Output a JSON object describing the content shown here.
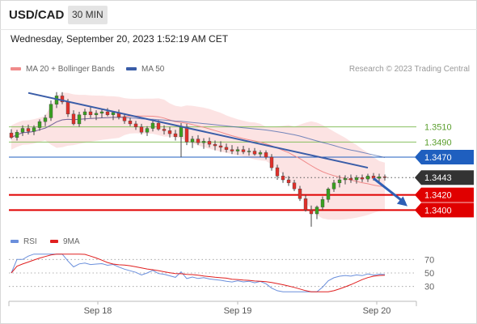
{
  "header": {
    "symbol": "USD/CAD",
    "timeframe": "30 MIN"
  },
  "datetime": "Wednesday, September 20, 2023 1:52:19 AM CET",
  "attribution": "Research © 2023 Trading Central",
  "colors": {
    "up": "#3aa020",
    "down": "#e0302a",
    "ma50": "#3a5da8",
    "bollinger_fill": "#fbd9d9",
    "bollinger_line": "#f08a8a",
    "resistance": "#88c060",
    "support": "#e00000",
    "pivot": "#1f5fbf",
    "current": "#333333",
    "rsi": "#6a8fdc",
    "rsi_ma": "#e02020"
  },
  "chart_data": [
    {
      "type": "line",
      "title": "",
      "legend": [
        {
          "name": "MA 20 + Bollinger Bands",
          "color": "#f08a8a"
        },
        {
          "name": "MA 50",
          "color": "#3a5da8"
        }
      ],
      "x_tick_labels": [
        "Sep 18",
        "Sep 19",
        "Sep 20"
      ],
      "y_range": [
        1.3365,
        1.3575
      ],
      "levels": [
        {
          "label": "1.3510",
          "value": 1.351,
          "role": "resistance",
          "color": "#88c060"
        },
        {
          "label": "1.3490",
          "value": 1.349,
          "role": "resistance",
          "color": "#88c060"
        },
        {
          "label": "1.3470",
          "value": 1.347,
          "role": "pivot",
          "color": "#1f5fbf"
        },
        {
          "label": "1.3443",
          "value": 1.3443,
          "role": "current",
          "color": "#333333"
        },
        {
          "label": "1.3420",
          "value": 1.342,
          "role": "support",
          "color": "#e00000"
        },
        {
          "label": "1.3400",
          "value": 1.34,
          "role": "support",
          "color": "#e00000"
        }
      ],
      "trendline": {
        "from": [
          3,
          1.3555
        ],
        "to": [
          63,
          1.3456
        ]
      },
      "forecast_arrow": {
        "from": [
          64,
          1.3442
        ],
        "to": [
          70,
          1.3405
        ]
      },
      "candles": [
        [
          1.3502,
          1.3507,
          1.3494,
          1.3496
        ],
        [
          1.3496,
          1.3506,
          1.3492,
          1.3503
        ],
        [
          1.3503,
          1.3512,
          1.3498,
          1.3508
        ],
        [
          1.3508,
          1.3513,
          1.35,
          1.3504
        ],
        [
          1.3504,
          1.3512,
          1.3499,
          1.3509
        ],
        [
          1.3509,
          1.352,
          1.3505,
          1.3517
        ],
        [
          1.3517,
          1.3526,
          1.3511,
          1.3522
        ],
        [
          1.3522,
          1.3545,
          1.3518,
          1.354
        ],
        [
          1.354,
          1.3556,
          1.3535,
          1.3551
        ],
        [
          1.3551,
          1.3556,
          1.354,
          1.3543
        ],
        [
          1.3543,
          1.3547,
          1.3523,
          1.3527
        ],
        [
          1.3527,
          1.3532,
          1.3512,
          1.3514
        ],
        [
          1.3514,
          1.353,
          1.351,
          1.3526
        ],
        [
          1.3526,
          1.3534,
          1.3518,
          1.353
        ],
        [
          1.353,
          1.3536,
          1.3522,
          1.3526
        ],
        [
          1.3526,
          1.3532,
          1.3519,
          1.3528
        ],
        [
          1.3528,
          1.3534,
          1.3522,
          1.353
        ],
        [
          1.353,
          1.3535,
          1.3524,
          1.3526
        ],
        [
          1.3526,
          1.3531,
          1.3519,
          1.3529
        ],
        [
          1.3529,
          1.3533,
          1.352,
          1.3523
        ],
        [
          1.3523,
          1.3528,
          1.3514,
          1.3518
        ],
        [
          1.3518,
          1.3522,
          1.3511,
          1.3514
        ],
        [
          1.3514,
          1.3518,
          1.3506,
          1.351
        ],
        [
          1.351,
          1.3514,
          1.35,
          1.3503
        ],
        [
          1.3503,
          1.3511,
          1.3498,
          1.3508
        ],
        [
          1.3508,
          1.3518,
          1.3504,
          1.3515
        ],
        [
          1.3515,
          1.3519,
          1.3505,
          1.3507
        ],
        [
          1.3507,
          1.3512,
          1.35,
          1.3505
        ],
        [
          1.3505,
          1.351,
          1.3496,
          1.3501
        ],
        [
          1.3501,
          1.3506,
          1.3492,
          1.3497
        ],
        [
          1.3497,
          1.3515,
          1.347,
          1.351
        ],
        [
          1.351,
          1.3514,
          1.3486,
          1.349
        ],
        [
          1.349,
          1.3498,
          1.3482,
          1.3494
        ],
        [
          1.3494,
          1.3499,
          1.3486,
          1.3489
        ],
        [
          1.3489,
          1.3495,
          1.3481,
          1.3491
        ],
        [
          1.3491,
          1.3496,
          1.3483,
          1.3487
        ],
        [
          1.3487,
          1.3492,
          1.3479,
          1.3485
        ],
        [
          1.3485,
          1.3491,
          1.3477,
          1.3483
        ],
        [
          1.3483,
          1.3488,
          1.3476,
          1.348
        ],
        [
          1.348,
          1.3486,
          1.3474,
          1.3478
        ],
        [
          1.3478,
          1.3484,
          1.3473,
          1.348
        ],
        [
          1.348,
          1.3485,
          1.3474,
          1.3477
        ],
        [
          1.3477,
          1.3482,
          1.3472,
          1.3478
        ],
        [
          1.3478,
          1.3482,
          1.3472,
          1.3474
        ],
        [
          1.3474,
          1.3479,
          1.347,
          1.3476
        ],
        [
          1.3476,
          1.3479,
          1.3467,
          1.347
        ],
        [
          1.347,
          1.3474,
          1.3452,
          1.3456
        ],
        [
          1.3456,
          1.346,
          1.344,
          1.3445
        ],
        [
          1.3445,
          1.345,
          1.3436,
          1.344
        ],
        [
          1.344,
          1.3445,
          1.3432,
          1.3436
        ],
        [
          1.3436,
          1.344,
          1.3425,
          1.3428
        ],
        [
          1.3428,
          1.3432,
          1.3412,
          1.3415
        ],
        [
          1.3415,
          1.342,
          1.3398,
          1.34
        ],
        [
          1.34,
          1.3406,
          1.3378,
          1.3395
        ],
        [
          1.3395,
          1.3406,
          1.3388,
          1.3404
        ],
        [
          1.3404,
          1.3418,
          1.34,
          1.3414
        ],
        [
          1.3414,
          1.343,
          1.341,
          1.3428
        ],
        [
          1.3428,
          1.344,
          1.3424,
          1.3436
        ],
        [
          1.3436,
          1.3446,
          1.343,
          1.344
        ],
        [
          1.344,
          1.3446,
          1.3434,
          1.3442
        ],
        [
          1.3442,
          1.3447,
          1.3436,
          1.344
        ],
        [
          1.344,
          1.3446,
          1.3435,
          1.3443
        ],
        [
          1.3443,
          1.3447,
          1.3437,
          1.3441
        ],
        [
          1.3441,
          1.3448,
          1.3437,
          1.3445
        ],
        [
          1.3445,
          1.3449,
          1.3439,
          1.3442
        ],
        [
          1.3442,
          1.3448,
          1.3438,
          1.3444
        ],
        [
          1.3444,
          1.3447,
          1.3439,
          1.3443
        ]
      ]
    },
    {
      "type": "line",
      "title": "",
      "legend": [
        {
          "name": "RSI",
          "color": "#6a8fdc"
        },
        {
          "name": "9MA",
          "color": "#e02020"
        }
      ],
      "y_range": [
        20,
        80
      ],
      "levels": [
        70,
        50,
        30
      ],
      "level_labels": [
        "70",
        "50",
        "30"
      ]
    }
  ]
}
